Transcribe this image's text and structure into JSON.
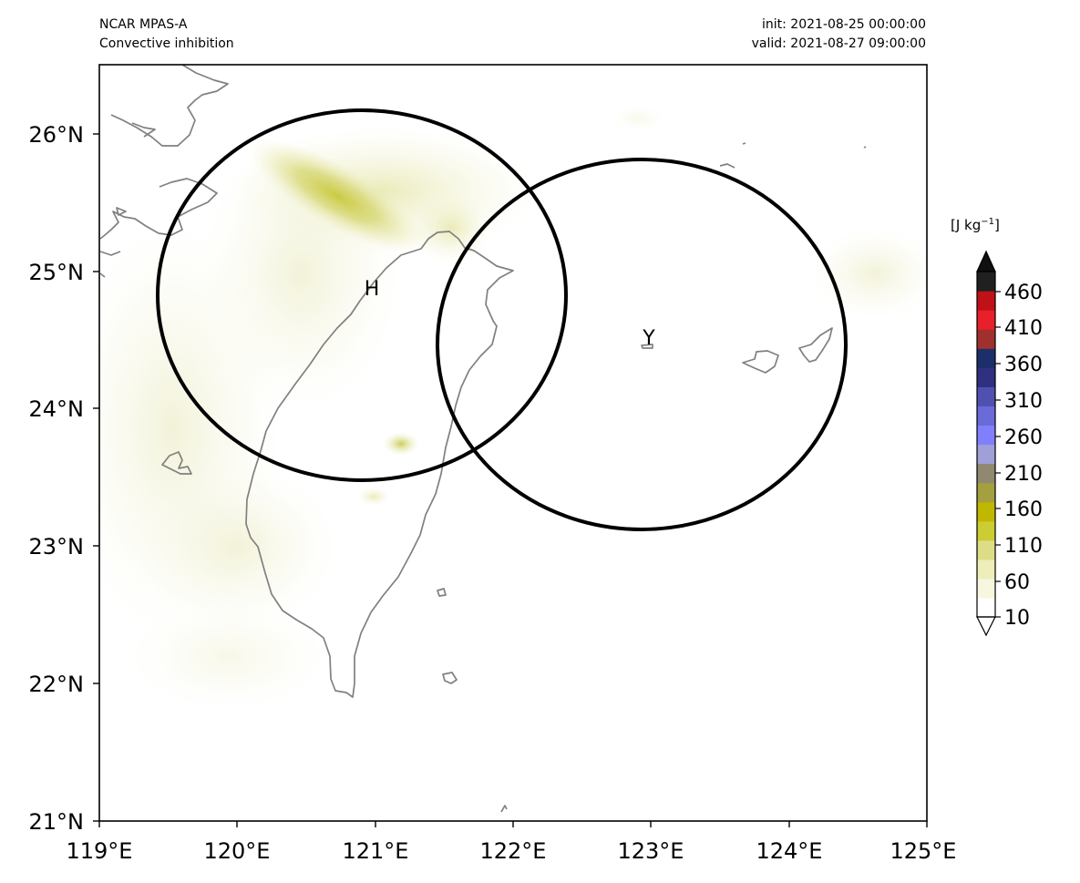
{
  "header": {
    "model": "NCAR MPAS-A",
    "field": "Convective inhibition",
    "init": "init: 2021-08-25 00:00:00",
    "valid": "valid: 2021-08-27 09:00:00"
  },
  "map": {
    "lon_range": [
      119,
      125
    ],
    "lat_range": [
      21,
      26.5
    ],
    "lon_ticks": [
      "119°E",
      "120°E",
      "121°E",
      "122°E",
      "123°E",
      "124°E",
      "125°E"
    ],
    "lat_ticks": [
      "21°N",
      "22°N",
      "23°N",
      "24°N",
      "25°N",
      "26°N"
    ],
    "coastline_color": "#808080",
    "markers": [
      {
        "label": "H",
        "lon": 120.9,
        "lat": 24.82
      },
      {
        "label": "Y",
        "lon": 122.95,
        "lat": 24.45
      }
    ],
    "circles": [
      {
        "center_lon": 120.9,
        "center_lat": 24.82,
        "radius_deg": 1.48
      },
      {
        "center_lon": 122.95,
        "center_lat": 24.45,
        "radius_deg": 1.48
      }
    ]
  },
  "colorbar": {
    "unit_text": "J kg",
    "unit_exp": "−1",
    "tick_labels": [
      "460",
      "410",
      "360",
      "310",
      "260",
      "210",
      "160",
      "110",
      "60",
      "10"
    ],
    "range": [
      10,
      490
    ],
    "colors": [
      "#ffffff",
      "#f7f7e0",
      "#eeeebb",
      "#dddd88",
      "#cccc33",
      "#c0b800",
      "#a4a040",
      "#908870",
      "#a0a0d8",
      "#8080ff",
      "#6a6ad8",
      "#5050b0",
      "#303080",
      "#1c2f6a",
      "#a0302e",
      "#e8202a",
      "#c01018",
      "#202020"
    ]
  }
}
